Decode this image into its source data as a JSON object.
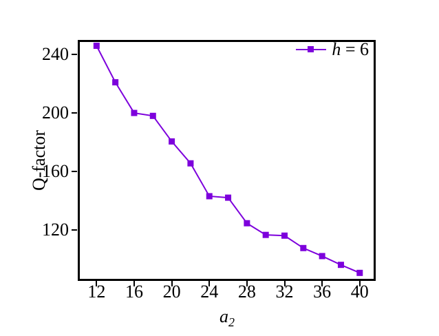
{
  "figure": {
    "background": "#ffffff",
    "frame_color": "#000000"
  },
  "chart_data": {
    "type": "line",
    "title": "",
    "xlabel": "a",
    "xlabel_sub": "2",
    "ylabel": "Q-factor",
    "xlim": [
      10,
      41.7
    ],
    "ylim": [
      85,
      250
    ],
    "xticks": [
      12,
      16,
      20,
      24,
      28,
      32,
      36,
      40
    ],
    "yticks": [
      120,
      160,
      200,
      240
    ],
    "grid": false,
    "legend_position": "top-right-inside",
    "series": [
      {
        "name": "h = 6",
        "color": "#7D00DC",
        "marker": "square",
        "x": [
          12,
          14,
          16,
          18,
          20,
          22,
          24,
          26,
          28,
          30,
          32,
          34,
          36,
          38,
          40
        ],
        "y": [
          246,
          221,
          200,
          198,
          180.5,
          165.5,
          143,
          142,
          124.5,
          116.5,
          116,
          107.5,
          102,
          96,
          90.5
        ]
      }
    ]
  },
  "legend": {
    "var": "h",
    "rest": " = 6"
  }
}
